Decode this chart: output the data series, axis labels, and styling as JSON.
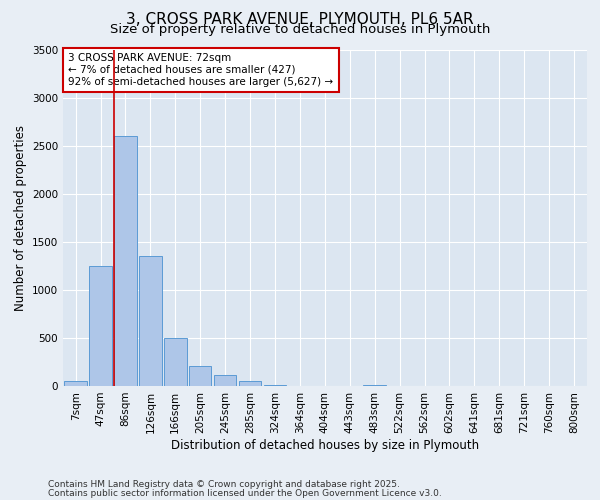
{
  "title_line1": "3, CROSS PARK AVENUE, PLYMOUTH, PL6 5AR",
  "title_line2": "Size of property relative to detached houses in Plymouth",
  "xlabel": "Distribution of detached houses by size in Plymouth",
  "ylabel": "Number of detached properties",
  "categories": [
    "7sqm",
    "47sqm",
    "86sqm",
    "126sqm",
    "166sqm",
    "205sqm",
    "245sqm",
    "285sqm",
    "324sqm",
    "364sqm",
    "404sqm",
    "443sqm",
    "483sqm",
    "522sqm",
    "562sqm",
    "602sqm",
    "641sqm",
    "681sqm",
    "721sqm",
    "760sqm",
    "800sqm"
  ],
  "values": [
    50,
    1250,
    2600,
    1350,
    500,
    210,
    110,
    55,
    10,
    3,
    2,
    2,
    15,
    1,
    0,
    0,
    0,
    0,
    0,
    0,
    0
  ],
  "bar_color": "#aec6e8",
  "bar_edge_color": "#5b9bd5",
  "ylim": [
    0,
    3500
  ],
  "yticks": [
    0,
    500,
    1000,
    1500,
    2000,
    2500,
    3000,
    3500
  ],
  "vline_x_idx": 2,
  "vline_color": "#cc0000",
  "annotation_text": "3 CROSS PARK AVENUE: 72sqm\n← 7% of detached houses are smaller (427)\n92% of semi-detached houses are larger (5,627) →",
  "annotation_box_color": "#ffffff",
  "annotation_box_edge_color": "#cc0000",
  "bg_color": "#e8eef5",
  "plot_bg_color": "#dce6f1",
  "footer_line1": "Contains HM Land Registry data © Crown copyright and database right 2025.",
  "footer_line2": "Contains public sector information licensed under the Open Government Licence v3.0.",
  "title_fontsize": 11,
  "subtitle_fontsize": 9.5,
  "axis_label_fontsize": 8.5,
  "tick_fontsize": 7.5,
  "annotation_fontsize": 7.5,
  "footer_fontsize": 6.5
}
